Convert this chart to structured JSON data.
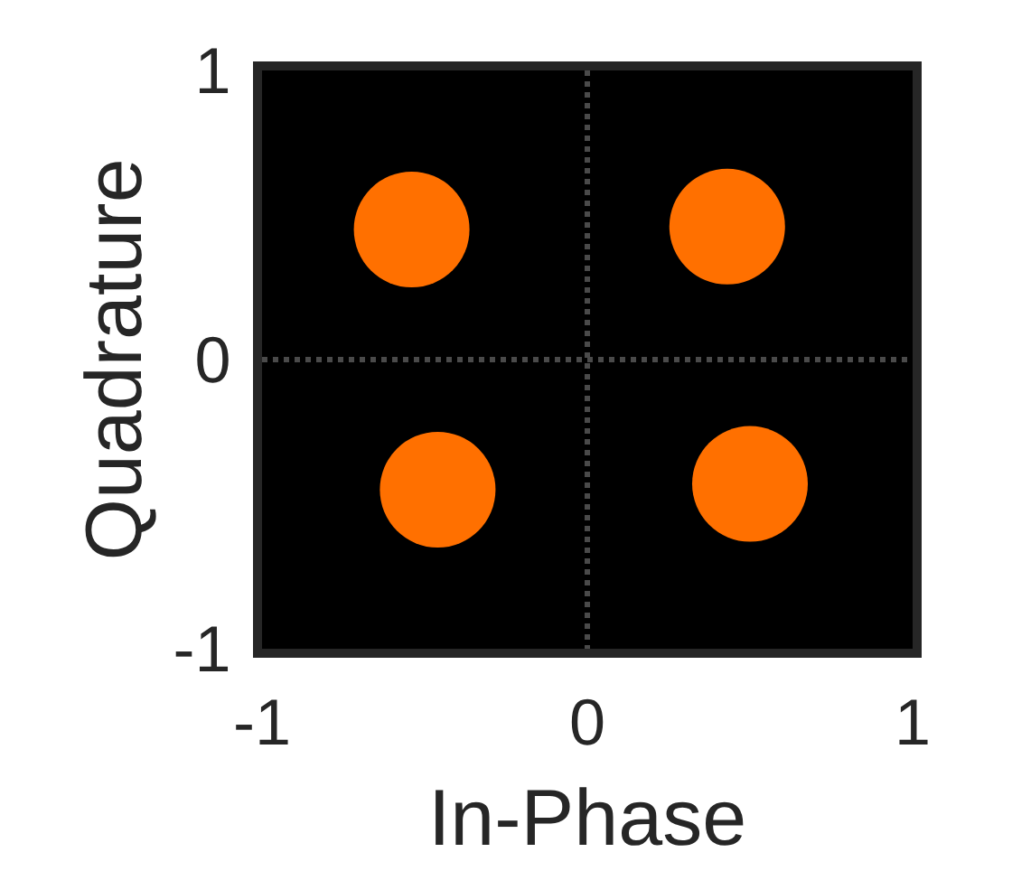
{
  "chart_data": {
    "type": "scatter",
    "xlabel": "In-Phase",
    "ylabel": "Quadrature",
    "x": [
      -0.54,
      0.43,
      -0.46,
      0.5
    ],
    "values": [
      0.45,
      0.46,
      -0.45,
      -0.43
    ],
    "color": "#ff7000",
    "marker": "circle",
    "xlim": [
      -1,
      1
    ],
    "ylim": [
      -1,
      1
    ],
    "xticks": [
      -1,
      0,
      1
    ],
    "yticks": [
      -1,
      0,
      1
    ],
    "grid": true
  }
}
